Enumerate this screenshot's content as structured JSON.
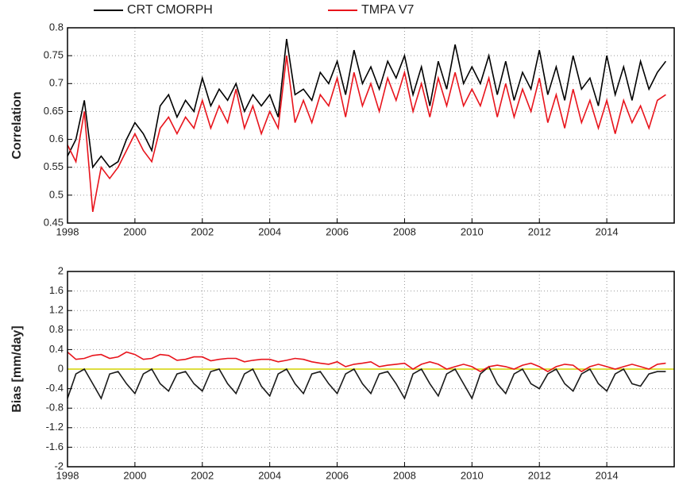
{
  "chart_data": [
    {
      "type": "line",
      "ylabel": "Correlation",
      "x": [
        1998,
        1998.25,
        1998.5,
        1998.75,
        1999,
        1999.25,
        1999.5,
        1999.75,
        2000,
        2000.25,
        2000.5,
        2000.75,
        2001,
        2001.25,
        2001.5,
        2001.75,
        2002,
        2002.25,
        2002.5,
        2002.75,
        2003,
        2003.25,
        2003.5,
        2003.75,
        2004,
        2004.25,
        2004.5,
        2004.75,
        2005,
        2005.25,
        2005.5,
        2005.75,
        2006,
        2006.25,
        2006.5,
        2006.75,
        2007,
        2007.25,
        2007.5,
        2007.75,
        2008,
        2008.25,
        2008.5,
        2008.75,
        2009,
        2009.25,
        2009.5,
        2009.75,
        2010,
        2010.25,
        2010.5,
        2010.75,
        2011,
        2011.25,
        2011.5,
        2011.75,
        2012,
        2012.25,
        2012.5,
        2012.75,
        2013,
        2013.25,
        2013.5,
        2013.75,
        2014,
        2014.25,
        2014.5,
        2014.75,
        2015,
        2015.25,
        2015.5,
        2015.75
      ],
      "series": [
        {
          "name": "CRT CMORPH",
          "color": "#000000",
          "values": [
            0.57,
            0.6,
            0.67,
            0.55,
            0.57,
            0.55,
            0.56,
            0.6,
            0.63,
            0.61,
            0.58,
            0.66,
            0.68,
            0.64,
            0.67,
            0.65,
            0.71,
            0.66,
            0.69,
            0.67,
            0.7,
            0.65,
            0.68,
            0.66,
            0.68,
            0.64,
            0.78,
            0.68,
            0.69,
            0.67,
            0.72,
            0.7,
            0.74,
            0.68,
            0.76,
            0.7,
            0.73,
            0.69,
            0.74,
            0.71,
            0.75,
            0.68,
            0.73,
            0.66,
            0.74,
            0.69,
            0.77,
            0.7,
            0.73,
            0.7,
            0.75,
            0.68,
            0.74,
            0.67,
            0.72,
            0.69,
            0.76,
            0.68,
            0.73,
            0.67,
            0.75,
            0.69,
            0.71,
            0.66,
            0.75,
            0.68,
            0.73,
            0.67,
            0.74,
            0.69,
            0.72,
            0.74
          ]
        },
        {
          "name": "TMPA V7",
          "color": "#e8141c",
          "values": [
            0.59,
            0.56,
            0.65,
            0.47,
            0.55,
            0.53,
            0.55,
            0.58,
            0.61,
            0.58,
            0.56,
            0.62,
            0.64,
            0.61,
            0.64,
            0.62,
            0.67,
            0.62,
            0.66,
            0.63,
            0.69,
            0.62,
            0.66,
            0.61,
            0.65,
            0.62,
            0.75,
            0.63,
            0.67,
            0.63,
            0.68,
            0.66,
            0.71,
            0.64,
            0.72,
            0.66,
            0.7,
            0.65,
            0.71,
            0.67,
            0.72,
            0.65,
            0.7,
            0.64,
            0.71,
            0.66,
            0.72,
            0.66,
            0.69,
            0.66,
            0.71,
            0.64,
            0.7,
            0.64,
            0.69,
            0.65,
            0.71,
            0.63,
            0.68,
            0.62,
            0.69,
            0.63,
            0.67,
            0.62,
            0.67,
            0.61,
            0.67,
            0.63,
            0.66,
            0.62,
            0.67,
            0.68
          ]
        }
      ],
      "xlim": [
        1998,
        2016
      ],
      "xticks": [
        1998,
        2000,
        2002,
        2004,
        2006,
        2008,
        2010,
        2012,
        2014
      ],
      "ylim": [
        0.45,
        0.8
      ],
      "yticks": [
        0.45,
        0.5,
        0.55,
        0.6,
        0.65,
        0.7,
        0.75,
        0.8
      ],
      "grid": true
    },
    {
      "type": "line",
      "ylabel": "Bias [mm/day]",
      "x": [
        1998,
        1998.25,
        1998.5,
        1998.75,
        1999,
        1999.25,
        1999.5,
        1999.75,
        2000,
        2000.25,
        2000.5,
        2000.75,
        2001,
        2001.25,
        2001.5,
        2001.75,
        2002,
        2002.25,
        2002.5,
        2002.75,
        2003,
        2003.25,
        2003.5,
        2003.75,
        2004,
        2004.25,
        2004.5,
        2004.75,
        2005,
        2005.25,
        2005.5,
        2005.75,
        2006,
        2006.25,
        2006.5,
        2006.75,
        2007,
        2007.25,
        2007.5,
        2007.75,
        2008,
        2008.25,
        2008.5,
        2008.75,
        2009,
        2009.25,
        2009.5,
        2009.75,
        2010,
        2010.25,
        2010.5,
        2010.75,
        2011,
        2011.25,
        2011.5,
        2011.75,
        2012,
        2012.25,
        2012.5,
        2012.75,
        2013,
        2013.25,
        2013.5,
        2013.75,
        2014,
        2014.25,
        2014.5,
        2014.75,
        2015,
        2015.25,
        2015.5,
        2015.75
      ],
      "series": [
        {
          "name": "CRT CMORPH",
          "color": "#1a1a1a",
          "values": [
            -0.6,
            -0.1,
            0.0,
            -0.3,
            -0.6,
            -0.1,
            -0.05,
            -0.3,
            -0.5,
            -0.1,
            0.0,
            -0.3,
            -0.45,
            -0.1,
            -0.05,
            -0.3,
            -0.45,
            -0.05,
            0.0,
            -0.3,
            -0.5,
            -0.1,
            0.0,
            -0.35,
            -0.55,
            -0.1,
            0.0,
            -0.3,
            -0.5,
            -0.1,
            -0.05,
            -0.3,
            -0.5,
            -0.1,
            0.0,
            -0.3,
            -0.5,
            -0.1,
            -0.05,
            -0.3,
            -0.6,
            -0.1,
            0.0,
            -0.3,
            -0.55,
            -0.1,
            0.0,
            -0.3,
            -0.6,
            -0.1,
            0.05,
            -0.3,
            -0.5,
            -0.1,
            0.0,
            -0.3,
            -0.4,
            -0.1,
            0.0,
            -0.3,
            -0.45,
            -0.1,
            0.0,
            -0.3,
            -0.45,
            -0.1,
            0.0,
            -0.3,
            -0.35,
            -0.1,
            -0.05,
            -0.05
          ]
        },
        {
          "name": "TMPA V7",
          "color": "#e8141c",
          "values": [
            0.35,
            0.2,
            0.22,
            0.28,
            0.3,
            0.22,
            0.25,
            0.35,
            0.3,
            0.2,
            0.22,
            0.3,
            0.28,
            0.18,
            0.2,
            0.25,
            0.25,
            0.17,
            0.2,
            0.22,
            0.22,
            0.15,
            0.18,
            0.2,
            0.2,
            0.15,
            0.18,
            0.22,
            0.2,
            0.15,
            0.12,
            0.1,
            0.15,
            0.05,
            0.1,
            0.12,
            0.15,
            0.05,
            0.08,
            0.1,
            0.12,
            0.0,
            0.1,
            0.15,
            0.1,
            0.0,
            0.05,
            0.1,
            0.05,
            -0.05,
            0.05,
            0.08,
            0.05,
            0.0,
            0.08,
            0.12,
            0.05,
            -0.05,
            0.05,
            0.1,
            0.08,
            -0.05,
            0.05,
            0.1,
            0.05,
            0.0,
            0.05,
            0.1,
            0.05,
            0.0,
            0.1,
            0.12
          ]
        }
      ],
      "reference_line": {
        "value": 0,
        "color": "#d4d400"
      },
      "xlim": [
        1998,
        2016
      ],
      "xticks": [
        1998,
        2000,
        2002,
        2004,
        2006,
        2008,
        2010,
        2012,
        2014
      ],
      "ylim": [
        -2,
        2
      ],
      "yticks": [
        -2,
        -1.6,
        -1.2,
        -0.8,
        -0.4,
        0,
        0.4,
        0.8,
        1.2,
        1.6,
        2
      ],
      "grid": true
    }
  ]
}
